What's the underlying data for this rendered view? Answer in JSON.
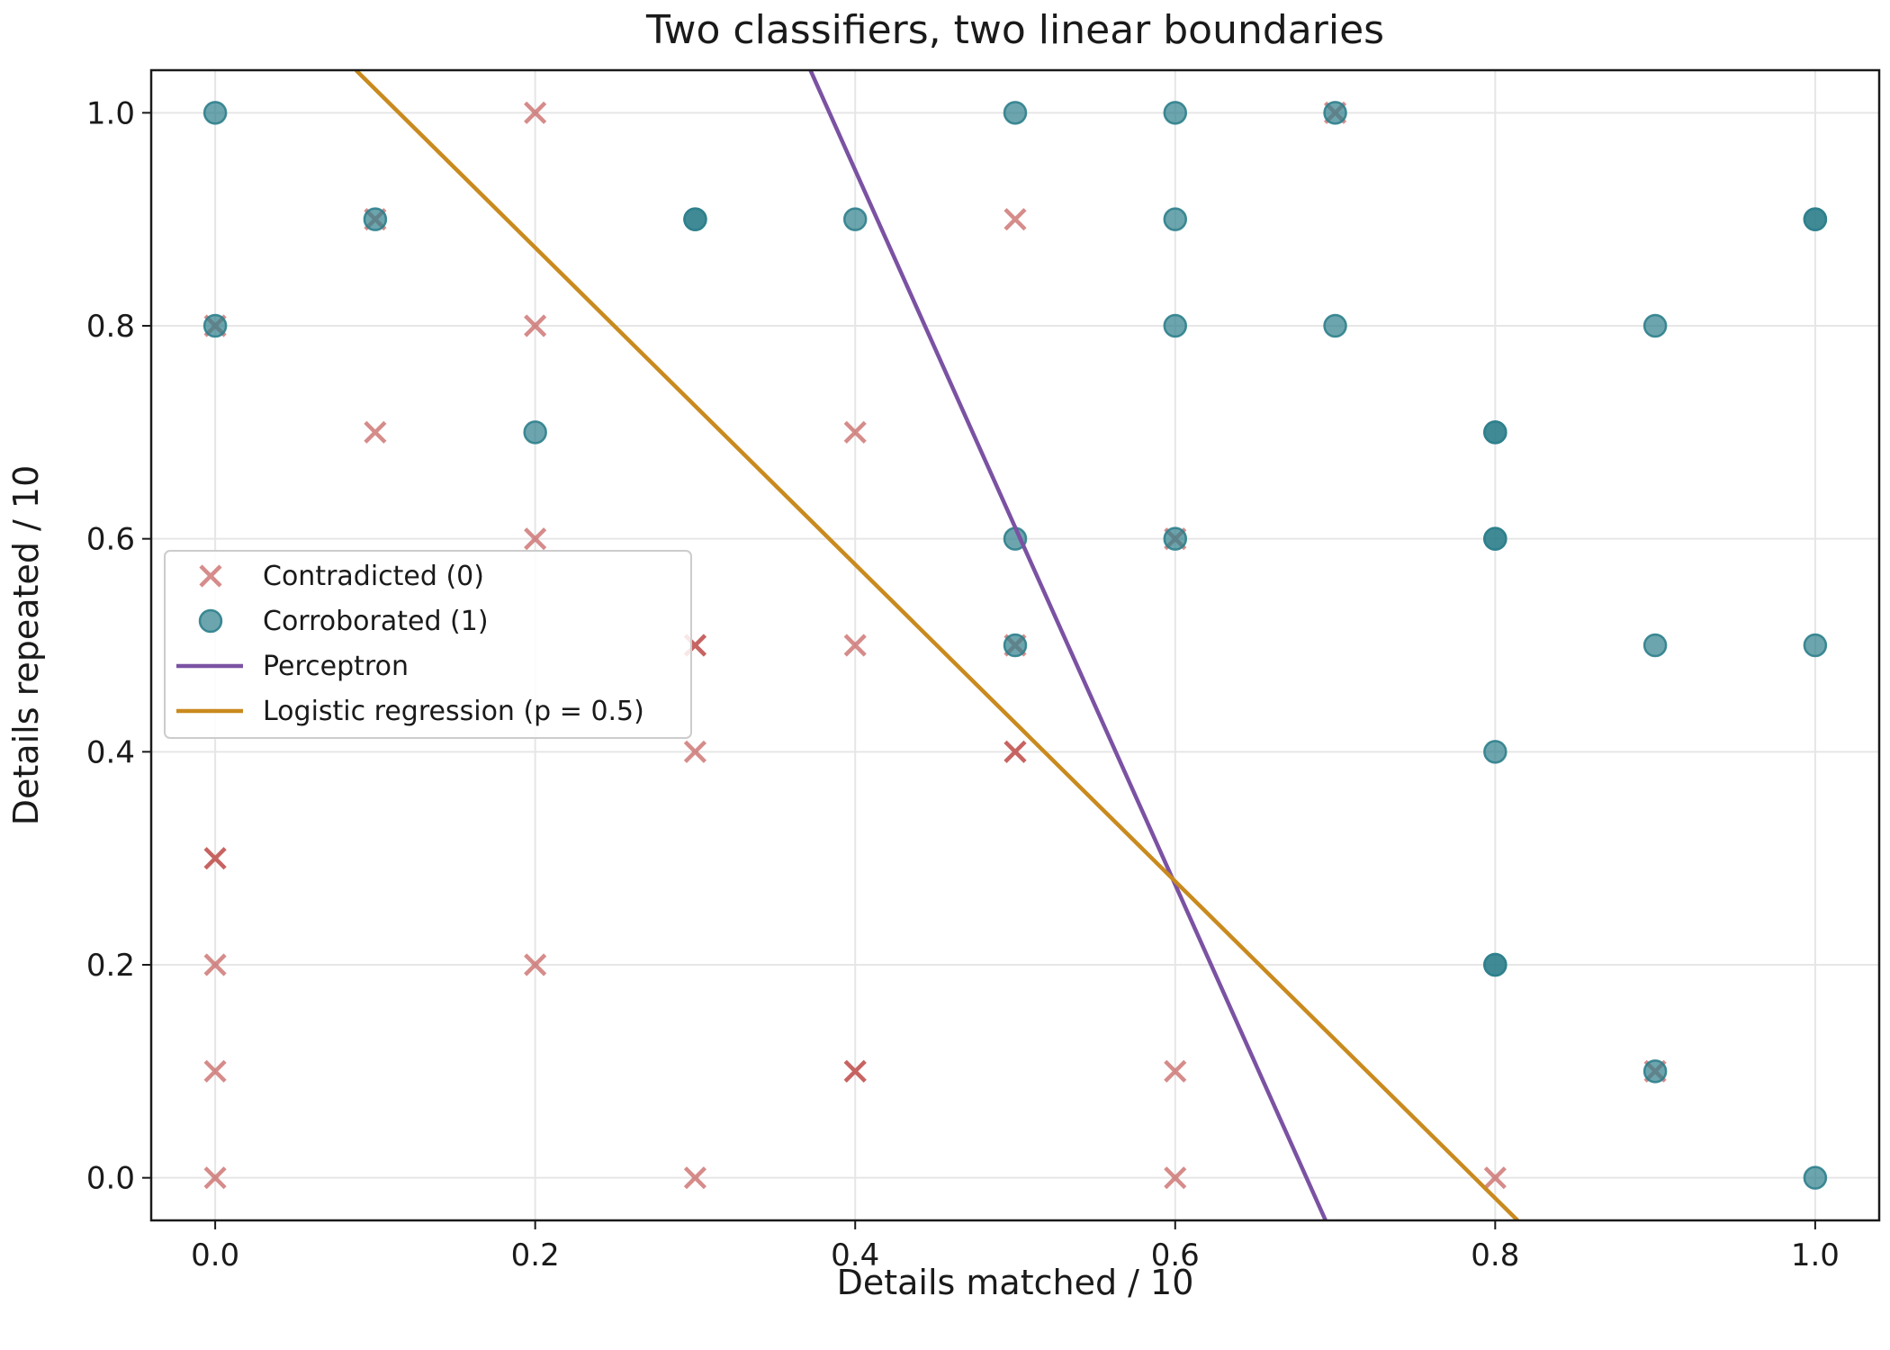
{
  "chart_data": {
    "type": "scatter",
    "title": "Two classifiers, two linear boundaries",
    "xlabel": "Details matched / 10",
    "ylabel": "Details repeated / 10",
    "xlim": [
      -0.04,
      1.04
    ],
    "ylim": [
      -0.04,
      1.04
    ],
    "xticks": [
      "0.0",
      "0.2",
      "0.4",
      "0.6",
      "0.8",
      "1.0"
    ],
    "yticks": [
      "0.0",
      "0.2",
      "0.4",
      "0.6",
      "0.8",
      "1.0"
    ],
    "grid": true,
    "legend_position": "center-left",
    "series": [
      {
        "name": "Contradicted (0)",
        "marker": "x",
        "color": "#c0504d",
        "points": [
          [
            0.0,
            0.8
          ],
          [
            0.0,
            0.3
          ],
          [
            0.0,
            0.3
          ],
          [
            0.0,
            0.2
          ],
          [
            0.0,
            0.1
          ],
          [
            0.0,
            0.0
          ],
          [
            0.1,
            0.9
          ],
          [
            0.1,
            0.7
          ],
          [
            0.2,
            1.0
          ],
          [
            0.2,
            0.8
          ],
          [
            0.2,
            0.6
          ],
          [
            0.2,
            0.2
          ],
          [
            0.3,
            0.5
          ],
          [
            0.3,
            0.5
          ],
          [
            0.3,
            0.4
          ],
          [
            0.3,
            0.0
          ],
          [
            0.4,
            0.7
          ],
          [
            0.4,
            0.5
          ],
          [
            0.4,
            0.1
          ],
          [
            0.4,
            0.1
          ],
          [
            0.5,
            0.9
          ],
          [
            0.5,
            0.5
          ],
          [
            0.5,
            0.4
          ],
          [
            0.5,
            0.4
          ],
          [
            0.6,
            0.6
          ],
          [
            0.6,
            0.1
          ],
          [
            0.6,
            0.0
          ],
          [
            0.7,
            1.0
          ],
          [
            0.8,
            0.0
          ],
          [
            0.9,
            0.1
          ]
        ]
      },
      {
        "name": "Corroborated (1)",
        "marker": "o",
        "color": "#2e7f8c",
        "points": [
          [
            0.0,
            1.0
          ],
          [
            0.0,
            0.8
          ],
          [
            0.1,
            0.9
          ],
          [
            0.2,
            0.7
          ],
          [
            0.3,
            0.9
          ],
          [
            0.3,
            0.9
          ],
          [
            0.4,
            0.9
          ],
          [
            0.5,
            1.0
          ],
          [
            0.5,
            0.6
          ],
          [
            0.5,
            0.5
          ],
          [
            0.6,
            1.0
          ],
          [
            0.6,
            0.9
          ],
          [
            0.6,
            0.8
          ],
          [
            0.6,
            0.6
          ],
          [
            0.7,
            1.0
          ],
          [
            0.7,
            0.8
          ],
          [
            0.8,
            0.7
          ],
          [
            0.8,
            0.7
          ],
          [
            0.8,
            0.6
          ],
          [
            0.8,
            0.6
          ],
          [
            0.8,
            0.4
          ],
          [
            0.8,
            0.2
          ],
          [
            0.8,
            0.2
          ],
          [
            0.9,
            0.8
          ],
          [
            0.9,
            0.5
          ],
          [
            0.9,
            0.1
          ],
          [
            1.0,
            0.9
          ],
          [
            1.0,
            0.9
          ],
          [
            1.0,
            0.5
          ],
          [
            1.0,
            0.0
          ]
        ]
      }
    ],
    "lines": [
      {
        "name": "Perceptron",
        "color": "#7b52a3",
        "points": [
          [
            0.372,
            1.04
          ],
          [
            0.694,
            -0.04
          ]
        ]
      },
      {
        "name": "Logistic regression (p = 0.5)",
        "color": "#c98a1e",
        "points": [
          [
            0.088,
            1.04
          ],
          [
            0.814,
            -0.04
          ]
        ]
      }
    ]
  }
}
